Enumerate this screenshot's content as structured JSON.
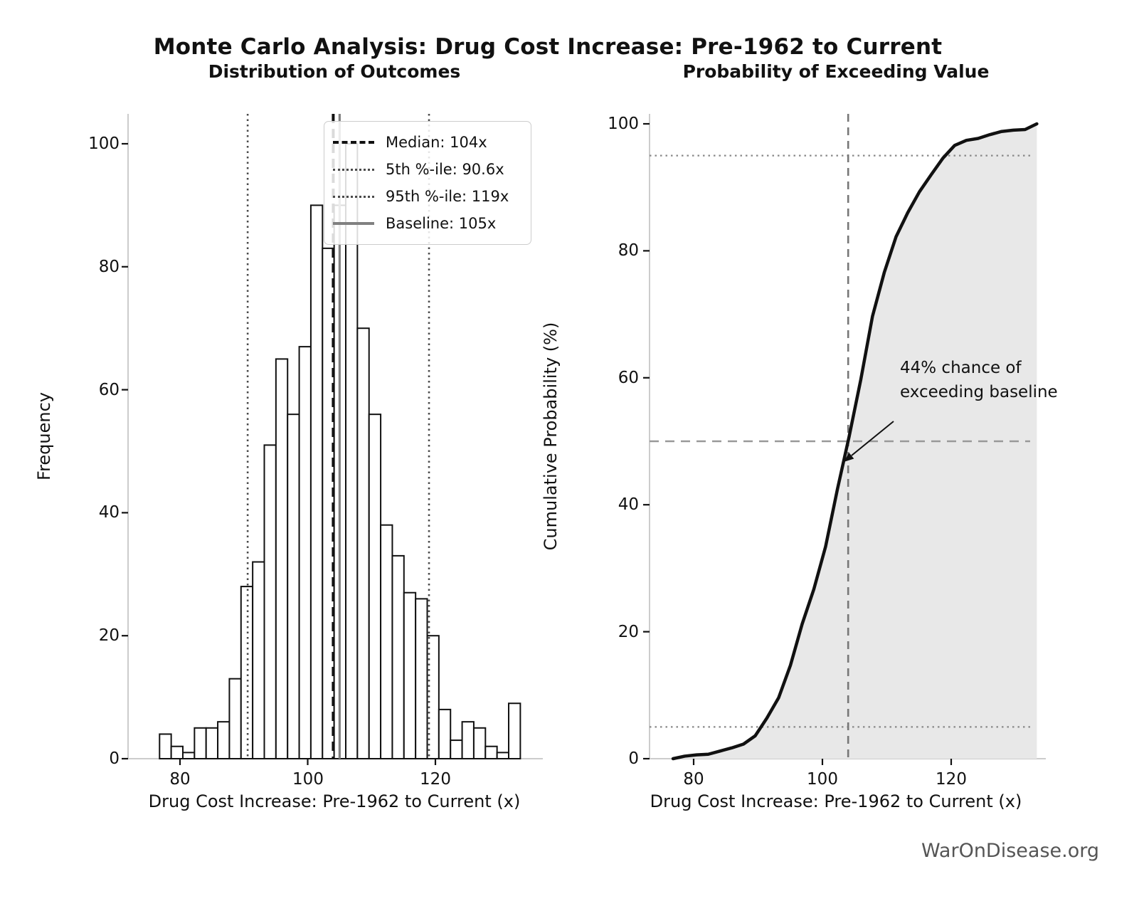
{
  "figure": {
    "suptitle": "Monte Carlo Analysis: Drug Cost Increase: Pre-1962 to Current",
    "watermark": "WarOnDisease.org"
  },
  "left_chart": {
    "title": "Distribution of Outcomes",
    "xlabel": "Drug Cost Increase: Pre-1962 to Current (x)",
    "ylabel": "Frequency",
    "x_tick_labels": [
      "80",
      "100",
      "120"
    ],
    "y_tick_labels": [
      "0",
      "20",
      "40",
      "60",
      "80",
      "100"
    ],
    "legend": [
      {
        "label": "Median: 104x",
        "style": "dashed-black"
      },
      {
        "label": "5th %-ile: 90.6x",
        "style": "dotted-gray"
      },
      {
        "label": "95th %-ile: 119x",
        "style": "dotted-gray"
      },
      {
        "label": "Baseline: 105x",
        "style": "solid-gray"
      }
    ]
  },
  "right_chart": {
    "title": "Probability of Exceeding Value",
    "xlabel": "Drug Cost Increase: Pre-1962 to Current (x)",
    "ylabel": "Cumulative Probability (%)",
    "x_tick_labels": [
      "80",
      "100",
      "120"
    ],
    "y_tick_labels": [
      "0",
      "20",
      "40",
      "60",
      "80",
      "100"
    ],
    "annotation": {
      "line1": "44% chance of",
      "line2": "exceeding baseline"
    }
  },
  "colors": {
    "bar_fill": "#ffffff",
    "bar_edge": "#111111",
    "median_line": "#111111",
    "baseline_line": "#808080",
    "percentile_line": "#4a4a4a",
    "cdf_line": "#111111",
    "cdf_fill": "#e8e8e8",
    "ref_dotted": "#888888",
    "ref_dashed": "#999999",
    "ref_vline": "#777777",
    "spine": "#cccccc",
    "tick": "#111111",
    "watermark": "#555555"
  },
  "chart_data": [
    {
      "type": "bar",
      "subtype": "histogram",
      "title": "Distribution of Outcomes",
      "xlabel": "Drug Cost Increase: Pre-1962 to Current (x)",
      "ylabel": "Frequency",
      "bin_start": 76.8,
      "bin_width": 1.8226,
      "counts": [
        4,
        2,
        1,
        5,
        5,
        6,
        13,
        28,
        32,
        51,
        65,
        56,
        67,
        90,
        83,
        90,
        100,
        70,
        56,
        38,
        33,
        27,
        26,
        20,
        8,
        3,
        6,
        5,
        2,
        1,
        9
      ],
      "x_ticks": [
        80,
        100,
        120
      ],
      "y_ticks": [
        0,
        20,
        40,
        60,
        80,
        100
      ],
      "xlim": [
        71.9,
        136.5
      ],
      "ylim": [
        0,
        104.9
      ],
      "grid": false,
      "legend_position": "upper-center",
      "ref_lines": {
        "median": 104,
        "p5": 90.6,
        "p95": 119,
        "baseline": 105
      }
    },
    {
      "type": "line",
      "subtype": "empirical-cdf",
      "title": "Probability of Exceeding Value",
      "xlabel": "Drug Cost Increase: Pre-1962 to Current (x)",
      "ylabel": "Cumulative Probability (%)",
      "x": [
        76.8,
        78.62,
        80.45,
        82.27,
        84.09,
        85.91,
        87.74,
        89.56,
        91.38,
        93.2,
        95.03,
        96.85,
        98.67,
        100.49,
        102.32,
        104.14,
        105.96,
        107.78,
        109.61,
        111.43,
        113.25,
        115.07,
        116.9,
        118.72,
        120.54,
        122.36,
        124.19,
        126.01,
        127.83,
        129.65,
        131.48,
        133.3
      ],
      "y": [
        0,
        0.4,
        0.6,
        0.7,
        1.2,
        1.7,
        2.3,
        3.6,
        6.4,
        9.6,
        14.7,
        21.2,
        26.7,
        33.4,
        42.4,
        50.7,
        59.7,
        69.7,
        76.6,
        82.2,
        86.0,
        89.3,
        92.0,
        94.6,
        96.6,
        97.4,
        97.7,
        98.3,
        98.8,
        99.0,
        99.1,
        100.0
      ],
      "x_ticks": [
        80,
        100,
        120
      ],
      "y_ticks": [
        0,
        20,
        40,
        60,
        80,
        100
      ],
      "xlim": [
        73.2,
        136.6
      ],
      "ylim": [
        0,
        101.5
      ],
      "grid": false,
      "fill_under": true,
      "ref_lines": {
        "h_dotted": [
          5,
          95
        ],
        "h_dashed": 50,
        "v_dashed": 104
      },
      "annotation_value": "44% exceedance at baseline 105x"
    }
  ]
}
